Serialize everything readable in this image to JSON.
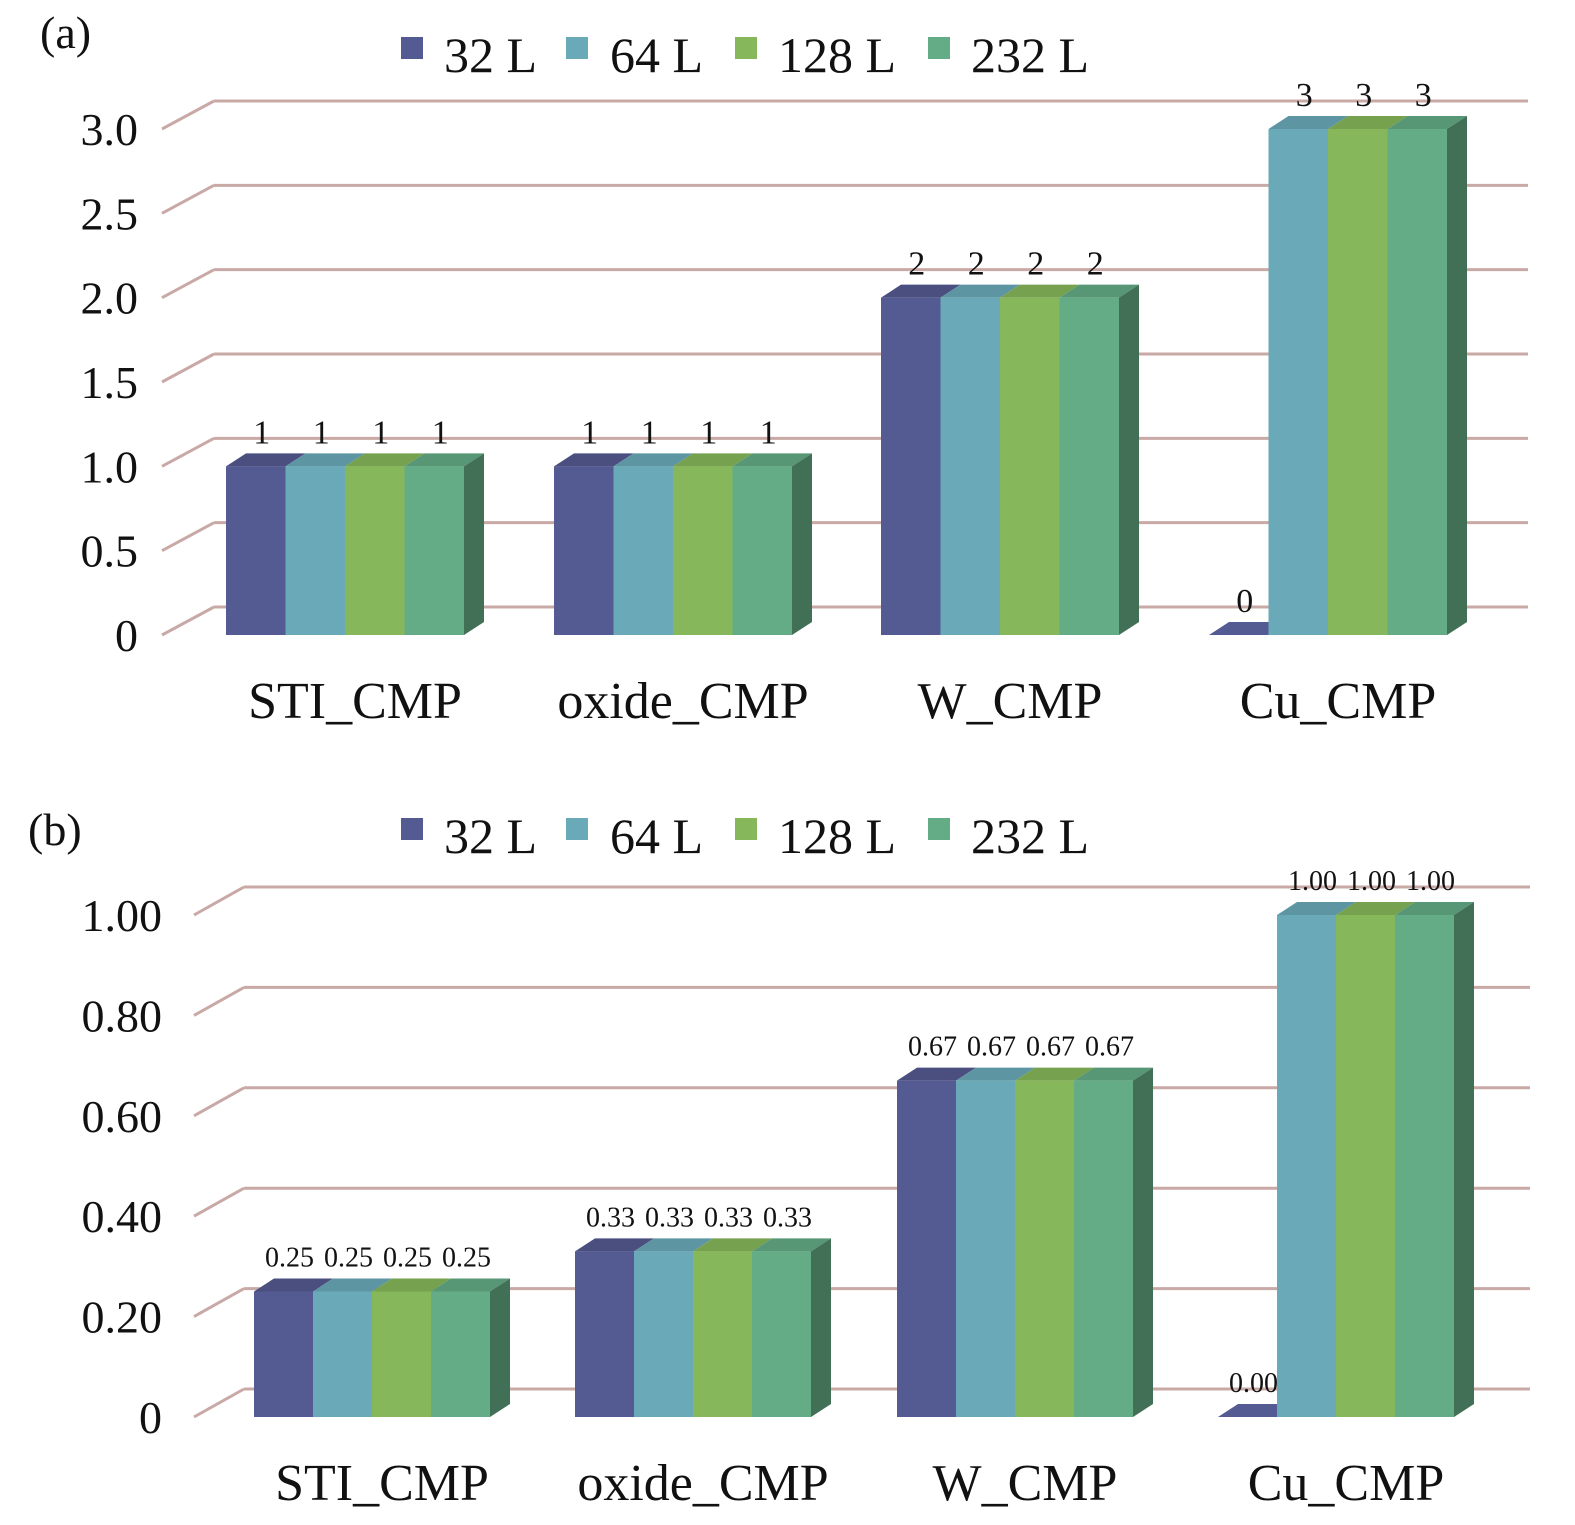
{
  "colors": {
    "grid": "#c9a9a6",
    "series": [
      "#545a92",
      "#6aaab8",
      "#86b75a",
      "#64ac86"
    ]
  },
  "chart_data": [
    {
      "panel_label": "(a)",
      "type": "bar",
      "style": "3d-clustered",
      "categories": [
        "STI_CMP",
        "oxide_CMP",
        "W_CMP",
        "Cu_CMP"
      ],
      "series": [
        {
          "name": "32 L",
          "values": [
            1,
            1,
            2,
            0
          ],
          "labels": [
            "1",
            "1",
            "2",
            "0"
          ]
        },
        {
          "name": "64 L",
          "values": [
            1,
            1,
            2,
            3
          ],
          "labels": [
            "1",
            "1",
            "2",
            "3"
          ]
        },
        {
          "name": "128 L",
          "values": [
            1,
            1,
            2,
            3
          ],
          "labels": [
            "1",
            "1",
            "2",
            "3"
          ]
        },
        {
          "name": "232 L",
          "values": [
            1,
            1,
            2,
            3
          ],
          "labels": [
            "1",
            "1",
            "2",
            "3"
          ]
        }
      ],
      "yticks": [
        "0",
        "0.5",
        "1.0",
        "1.5",
        "2.0",
        "2.5",
        "3.0"
      ],
      "ylim": [
        0,
        3.0
      ],
      "grid": true,
      "legend": "top-center"
    },
    {
      "panel_label": "(b)",
      "type": "bar",
      "style": "3d-clustered",
      "categories": [
        "STI_CMP",
        "oxide_CMP",
        "W_CMP",
        "Cu_CMP"
      ],
      "series": [
        {
          "name": "32 L",
          "values": [
            0.25,
            0.33,
            0.67,
            0.0
          ],
          "labels": [
            "0.25",
            "0.33",
            "0.67",
            "0.00"
          ]
        },
        {
          "name": "64 L",
          "values": [
            0.25,
            0.33,
            0.67,
            1.0
          ],
          "labels": [
            "0.25",
            "0.33",
            "0.67",
            "1.00"
          ]
        },
        {
          "name": "128 L",
          "values": [
            0.25,
            0.33,
            0.67,
            1.0
          ],
          "labels": [
            "0.25",
            "0.33",
            "0.67",
            "1.00"
          ]
        },
        {
          "name": "232 L",
          "values": [
            0.25,
            0.33,
            0.67,
            1.0
          ],
          "labels": [
            "0.25",
            "0.33",
            "0.67",
            "1.00"
          ]
        }
      ],
      "yticks": [
        "0",
        "0.20",
        "0.40",
        "0.60",
        "0.80",
        "1.00"
      ],
      "ylim": [
        0,
        1.0
      ],
      "grid": true,
      "legend": "top-center"
    }
  ]
}
